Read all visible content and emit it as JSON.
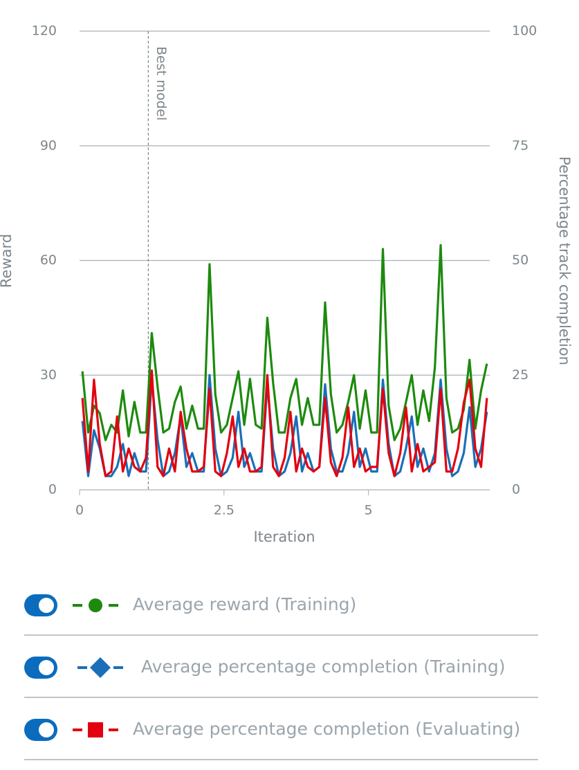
{
  "chart_data": {
    "type": "line",
    "x_label": "Iteration",
    "y_label": "Reward",
    "y2_label": "Percentage track completion",
    "x": [
      0.05,
      0.15,
      0.25,
      0.35,
      0.45,
      0.55,
      0.65,
      0.75,
      0.85,
      0.95,
      1.05,
      1.15,
      1.25,
      1.35,
      1.45,
      1.55,
      1.65,
      1.75,
      1.85,
      1.95,
      2.05,
      2.15,
      2.25,
      2.35,
      2.45,
      2.55,
      2.65,
      2.75,
      2.85,
      2.95,
      3.05,
      3.15,
      3.25,
      3.35,
      3.45,
      3.55,
      3.65,
      3.75,
      3.85,
      3.95,
      4.05,
      4.15,
      4.25,
      4.35,
      4.45,
      4.55,
      4.65,
      4.75,
      4.85,
      4.95,
      5.05,
      5.15,
      5.25,
      5.35,
      5.45,
      5.55,
      5.65,
      5.75,
      5.85,
      5.95,
      6.05,
      6.15,
      6.25,
      6.35,
      6.45,
      6.55,
      6.65,
      6.75,
      6.85,
      6.95,
      7.05
    ],
    "series": [
      {
        "name": "Average reward (Training)",
        "color": "#1d8a0e",
        "marker": "circle",
        "values": [
          31,
          15,
          22,
          20,
          13,
          17,
          15,
          26,
          14,
          23,
          15,
          15,
          41,
          27,
          15,
          16,
          23,
          27,
          16,
          22,
          16,
          16,
          59,
          25,
          15,
          17,
          24,
          31,
          17,
          29,
          17,
          16,
          45,
          28,
          15,
          15,
          24,
          29,
          17,
          24,
          17,
          17,
          49,
          25,
          15,
          17,
          23,
          30,
          16,
          26,
          15,
          15,
          63,
          22,
          13,
          16,
          23,
          30,
          17,
          26,
          18,
          32,
          64,
          24,
          15,
          16,
          21,
          34,
          16,
          26,
          33
        ]
      },
      {
        "name": "Average percentage completion (Training)",
        "color": "#1a6fb8",
        "marker": "diamond",
        "axis": "y2",
        "values": [
          15,
          3,
          13,
          9,
          3,
          3,
          5,
          10,
          3,
          8,
          4,
          4,
          24,
          11,
          3,
          4,
          8,
          16,
          5,
          8,
          4,
          4,
          25,
          9,
          3,
          4,
          7,
          17,
          5,
          8,
          4,
          4,
          23,
          9,
          3,
          4,
          8,
          16,
          4,
          8,
          4,
          5,
          23,
          9,
          4,
          4,
          8,
          17,
          5,
          9,
          4,
          4,
          24,
          10,
          3,
          4,
          9,
          16,
          5,
          9,
          4,
          8,
          24,
          9,
          3,
          4,
          8,
          18,
          5,
          9,
          17
        ]
      },
      {
        "name": "Average percentage completion (Evaluating)",
        "color": "#e3000f",
        "marker": "square",
        "axis": "y2",
        "values": [
          20,
          4,
          24,
          10,
          3,
          4,
          16,
          4,
          9,
          5,
          4,
          7,
          26,
          5,
          3,
          9,
          4,
          17,
          9,
          4,
          4,
          5,
          22,
          4,
          3,
          8,
          16,
          5,
          9,
          4,
          4,
          5,
          25,
          5,
          3,
          7,
          17,
          4,
          9,
          5,
          4,
          5,
          20,
          6,
          3,
          7,
          18,
          5,
          9,
          4,
          5,
          5,
          22,
          8,
          3,
          8,
          18,
          4,
          10,
          4,
          5,
          6,
          22,
          4,
          4,
          9,
          19,
          24,
          9,
          5,
          20
        ]
      }
    ],
    "xlim": [
      0,
      7.1
    ],
    "xticks": [
      0,
      2.5,
      5
    ],
    "ylim": [
      0,
      120
    ],
    "yticks": [
      0,
      30,
      60,
      90,
      120
    ],
    "y2lim": [
      0,
      100
    ],
    "y2ticks": [
      0,
      25,
      50,
      75,
      100
    ],
    "grid": true,
    "annotation": {
      "label": "Best model",
      "x": 1.19
    }
  }
}
